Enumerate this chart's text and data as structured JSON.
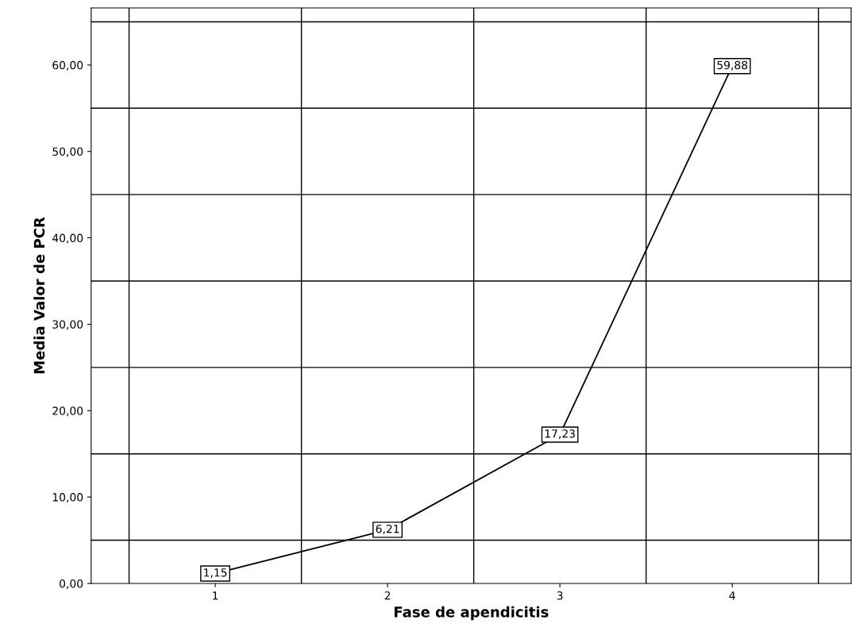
{
  "chart_data": {
    "type": "line",
    "xlabel": "Fase de apendicitis",
    "ylabel": "Media Valor de PCR",
    "categories": [
      "1",
      "2",
      "3",
      "4"
    ],
    "series": [
      {
        "color": "#000000",
        "values": [
          1.15,
          6.21,
          17.23,
          59.88
        ],
        "value_labels": [
          "1,15",
          "6,21",
          "17,23",
          "59,88"
        ]
      }
    ],
    "ylim": [
      0,
      66.6
    ],
    "yticks": [
      {
        "value": 0,
        "label": "0,00"
      },
      {
        "value": 10,
        "label": "10,00"
      },
      {
        "value": 20,
        "label": "20,00"
      },
      {
        "value": 30,
        "label": "30,00"
      },
      {
        "value": 40,
        "label": "40,00"
      },
      {
        "value": 50,
        "label": "50,00"
      },
      {
        "value": 60,
        "label": "60,00"
      }
    ],
    "grid": true,
    "line_style": "solid"
  }
}
